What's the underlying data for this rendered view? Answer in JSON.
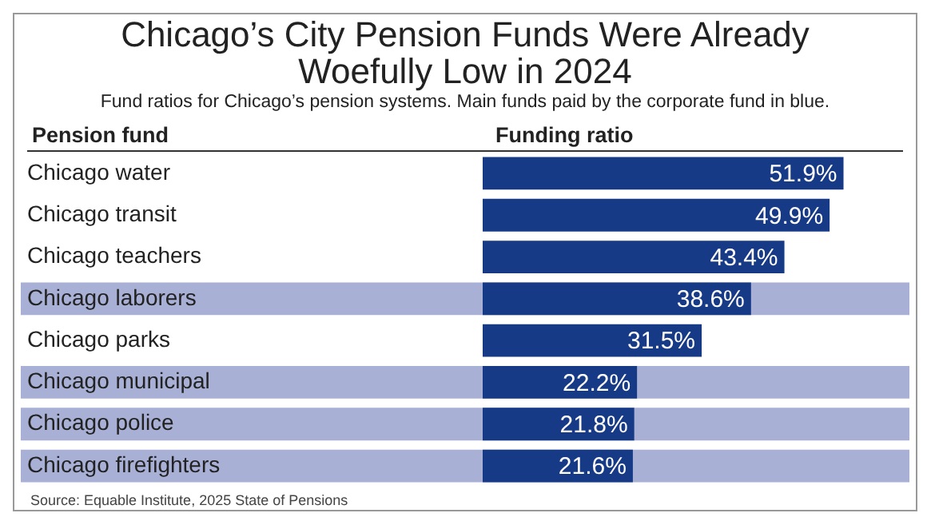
{
  "chart_data": {
    "type": "bar",
    "orientation": "horizontal",
    "title": "Chicago’s City Pension Funds Were Already Woefully Low in 2024",
    "subtitle": "Fund ratios for Chicago’s pension systems. Main funds paid by the corporate fund in blue.",
    "ylabel": "Pension fund",
    "xlabel": "Funding ratio",
    "categories": [
      "Chicago water",
      "Chicago transit",
      "Chicago teachers",
      "Chicago laborers",
      "Chicago parks",
      "Chicago municipal",
      "Chicago police",
      "Chicago firefighters"
    ],
    "values": [
      51.9,
      49.9,
      43.4,
      38.6,
      31.5,
      22.2,
      21.8,
      21.6
    ],
    "value_labels": [
      "51.9%",
      "49.9%",
      "43.4%",
      "38.6%",
      "31.5%",
      "22.2%",
      "21.8%",
      "21.6%"
    ],
    "color": "#173a86",
    "bands": [
      {
        "axis": "y",
        "from": "Chicago laborers",
        "to": "Chicago laborers",
        "color": "#a9b0d6"
      },
      {
        "axis": "y",
        "from": "Chicago municipal",
        "to": "Chicago municipal",
        "color": "#a9b0d6"
      },
      {
        "axis": "y",
        "from": "Chicago police",
        "to": "Chicago police",
        "color": "#a9b0d6"
      },
      {
        "axis": "y",
        "from": "Chicago firefighters",
        "to": "Chicago firefighters",
        "color": "#a9b0d6"
      }
    ],
    "legend": false,
    "annotations": [
      "Source: Equable Institute, 2025 State of Pensions"
    ]
  }
}
